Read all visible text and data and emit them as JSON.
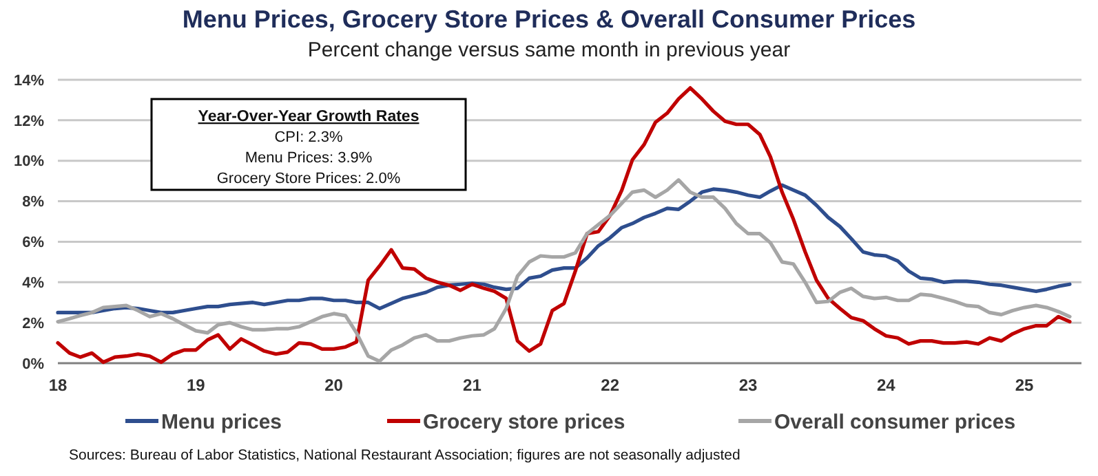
{
  "chart_data": {
    "type": "line",
    "title": "Menu Prices, Grocery Store Prices & Overall Consumer Prices",
    "subtitle": "Percent change versus same month in previous year",
    "annotations": [
      "Year-Over-Year Growth Rates",
      "CPI: 2.3%",
      "Menu Prices: 3.9%",
      "Grocery Store Prices: 2.0%",
      "Sources: Bureau of Labor Statistics, National Restaurant Association;  figures are not seasonally adjusted"
    ],
    "x": [
      "2018-01",
      "2018-02",
      "2018-03",
      "2018-04",
      "2018-05",
      "2018-06",
      "2018-07",
      "2018-08",
      "2018-09",
      "2018-10",
      "2018-11",
      "2018-12",
      "2019-01",
      "2019-02",
      "2019-03",
      "2019-04",
      "2019-05",
      "2019-06",
      "2019-07",
      "2019-08",
      "2019-09",
      "2019-10",
      "2019-11",
      "2019-12",
      "2020-01",
      "2020-02",
      "2020-03",
      "2020-04",
      "2020-05",
      "2020-06",
      "2020-07",
      "2020-08",
      "2020-09",
      "2020-10",
      "2020-11",
      "2020-12",
      "2021-01",
      "2021-02",
      "2021-03",
      "2021-04",
      "2021-05",
      "2021-06",
      "2021-07",
      "2021-08",
      "2021-09",
      "2021-10",
      "2021-11",
      "2021-12",
      "2022-01",
      "2022-02",
      "2022-03",
      "2022-04",
      "2022-05",
      "2022-06",
      "2022-07",
      "2022-08",
      "2022-09",
      "2022-10",
      "2022-11",
      "2022-12",
      "2023-01",
      "2023-02",
      "2023-03",
      "2023-04",
      "2023-05",
      "2023-06",
      "2023-07",
      "2023-08",
      "2023-09",
      "2023-10",
      "2023-11",
      "2023-12",
      "2024-01",
      "2024-02",
      "2024-03",
      "2024-04",
      "2024-05",
      "2024-06",
      "2024-07",
      "2024-08",
      "2024-09",
      "2024-10",
      "2024-11",
      "2024-12",
      "2025-01",
      "2025-02",
      "2025-03",
      "2025-04",
      "2025-05"
    ],
    "series": [
      {
        "name": "Menu prices",
        "color": "#2e4e8e",
        "values": [
          2.5,
          2.5,
          2.5,
          2.5,
          2.6,
          2.7,
          2.75,
          2.7,
          2.6,
          2.5,
          2.5,
          2.6,
          2.7,
          2.8,
          2.8,
          2.9,
          2.95,
          3.0,
          2.9,
          3.0,
          3.1,
          3.1,
          3.2,
          3.2,
          3.1,
          3.1,
          3.0,
          3.0,
          2.7,
          2.95,
          3.2,
          3.35,
          3.5,
          3.75,
          3.85,
          3.9,
          3.95,
          3.9,
          3.75,
          3.65,
          3.7,
          4.2,
          4.3,
          4.6,
          4.7,
          4.7,
          5.2,
          5.8,
          6.2,
          6.7,
          6.9,
          7.2,
          7.4,
          7.65,
          7.6,
          8.0,
          8.45,
          8.6,
          8.55,
          8.45,
          8.3,
          8.2,
          8.5,
          8.8,
          8.55,
          8.3,
          7.8,
          7.2,
          6.75,
          6.15,
          5.5,
          5.35,
          5.3,
          5.05,
          4.55,
          4.2,
          4.15,
          4.0,
          4.05,
          4.05,
          4.0,
          3.9,
          3.85,
          3.75,
          3.65,
          3.55,
          3.65,
          3.8,
          3.9
        ]
      },
      {
        "name": "Grocery store prices",
        "color": "#c00000",
        "values": [
          1.0,
          0.5,
          0.3,
          0.5,
          0.05,
          0.3,
          0.35,
          0.45,
          0.35,
          0.05,
          0.45,
          0.65,
          0.65,
          1.15,
          1.4,
          0.7,
          1.2,
          0.9,
          0.6,
          0.45,
          0.55,
          1.0,
          0.95,
          0.7,
          0.7,
          0.8,
          1.05,
          4.1,
          4.8,
          5.6,
          4.7,
          4.65,
          4.2,
          4.0,
          3.85,
          3.6,
          3.9,
          3.7,
          3.55,
          3.2,
          1.1,
          0.6,
          0.95,
          2.6,
          2.95,
          4.55,
          6.4,
          6.5,
          7.3,
          8.55,
          10.05,
          10.8,
          11.9,
          12.35,
          13.05,
          13.6,
          13.05,
          12.45,
          11.95,
          11.8,
          11.8,
          11.3,
          10.2,
          8.45,
          7.1,
          5.5,
          4.1,
          3.2,
          2.7,
          2.25,
          2.1,
          1.7,
          1.35,
          1.25,
          0.95,
          1.1,
          1.1,
          1.0,
          1.0,
          1.05,
          0.95,
          1.25,
          1.1,
          1.45,
          1.7,
          1.85,
          1.85,
          2.3,
          2.05
        ]
      },
      {
        "name": "Overall consumer prices",
        "color": "#a6a6a6",
        "values": [
          2.05,
          2.2,
          2.35,
          2.5,
          2.75,
          2.8,
          2.85,
          2.6,
          2.3,
          2.45,
          2.2,
          1.9,
          1.6,
          1.5,
          1.9,
          2.0,
          1.8,
          1.65,
          1.65,
          1.7,
          1.7,
          1.8,
          2.05,
          2.3,
          2.45,
          2.35,
          1.5,
          0.35,
          0.1,
          0.65,
          0.9,
          1.25,
          1.4,
          1.1,
          1.1,
          1.25,
          1.35,
          1.4,
          1.7,
          2.7,
          4.3,
          5.0,
          5.3,
          5.25,
          5.25,
          5.45,
          6.4,
          6.85,
          7.3,
          7.9,
          8.45,
          8.55,
          8.2,
          8.55,
          9.05,
          8.45,
          8.2,
          8.2,
          7.65,
          6.9,
          6.4,
          6.4,
          5.95,
          5.0,
          4.9,
          4.0,
          3.0,
          3.05,
          3.5,
          3.7,
          3.3,
          3.2,
          3.25,
          3.1,
          3.1,
          3.4,
          3.35,
          3.2,
          3.05,
          2.85,
          2.8,
          2.5,
          2.4,
          2.6,
          2.75,
          2.85,
          2.75,
          2.55,
          2.3
        ]
      }
    ],
    "xlim": [
      "2018-01",
      "2025-06"
    ],
    "xticks": [
      {
        "value": "2018-01",
        "label": "18"
      },
      {
        "value": "2019-01",
        "label": "19"
      },
      {
        "value": "2020-01",
        "label": "20"
      },
      {
        "value": "2021-01",
        "label": "21"
      },
      {
        "value": "2022-01",
        "label": "22"
      },
      {
        "value": "2023-01",
        "label": "23"
      },
      {
        "value": "2024-01",
        "label": "24"
      },
      {
        "value": "2025-01",
        "label": "25"
      }
    ],
    "ylim": [
      0,
      14
    ],
    "yticks": [
      {
        "value": 0,
        "label": "0%"
      },
      {
        "value": 2,
        "label": "2%"
      },
      {
        "value": 4,
        "label": "4%"
      },
      {
        "value": 6,
        "label": "6%"
      },
      {
        "value": 8,
        "label": "8%"
      },
      {
        "value": 10,
        "label": "10%"
      },
      {
        "value": 12,
        "label": "12%"
      },
      {
        "value": 14,
        "label": "14%"
      }
    ],
    "grid": "y",
    "legend": "bottom",
    "marker": "none",
    "line_style": "solid"
  }
}
